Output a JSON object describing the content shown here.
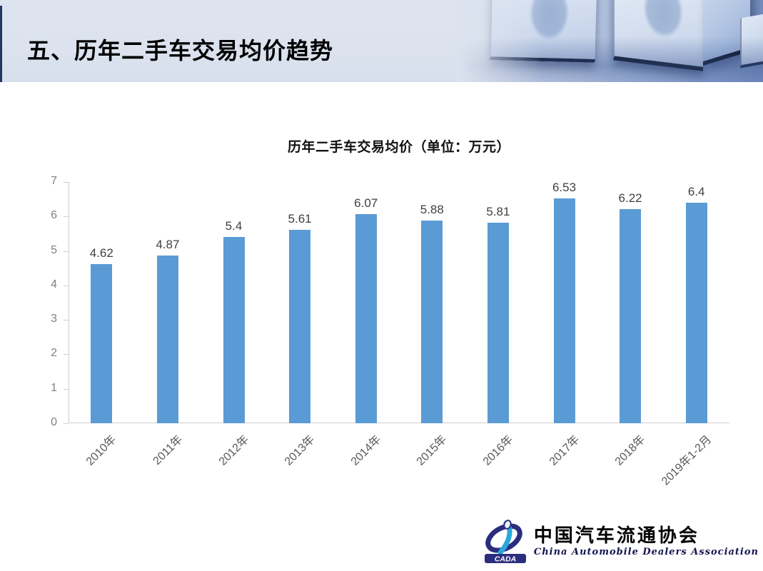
{
  "page": {
    "title": "五、历年二手车交易均价趋势"
  },
  "chart_data": {
    "type": "bar",
    "title": "历年二手车交易均价（单位：万元）",
    "categories": [
      "2010年",
      "2011年",
      "2012年",
      "2013年",
      "2014年",
      "2015年",
      "2016年",
      "2017年",
      "2018年",
      "2019年1-2月"
    ],
    "values": [
      4.62,
      4.87,
      5.4,
      5.61,
      6.07,
      5.88,
      5.81,
      6.53,
      6.22,
      6.4
    ],
    "value_labels": [
      "4.62",
      "4.87",
      "5.4",
      "5.61",
      "6.07",
      "5.88",
      "5.81",
      "6.53",
      "6.22",
      "6.4"
    ],
    "ylim": [
      0,
      7
    ],
    "ytick_interval": 1,
    "ytick_labels": [
      "0",
      "1",
      "2",
      "3",
      "4",
      "5",
      "6",
      "7"
    ],
    "grid": false,
    "legend_position": "none",
    "xlabel": "",
    "ylabel": "",
    "bar_color": "#5B9BD5",
    "axis_color": "#d0cece",
    "data_label_color": "#404040",
    "tick_label_color": "#7f7f7f"
  },
  "footer": {
    "logo_acronym": "CADA",
    "org_name_zh": "中国汽车流通协会",
    "org_name_en": "China Automobile Dealers Association"
  },
  "colors": {
    "header_accent": "#1f3864",
    "logo_navy": "#2b2d7e",
    "logo_lightblue": "#29a8dc"
  }
}
